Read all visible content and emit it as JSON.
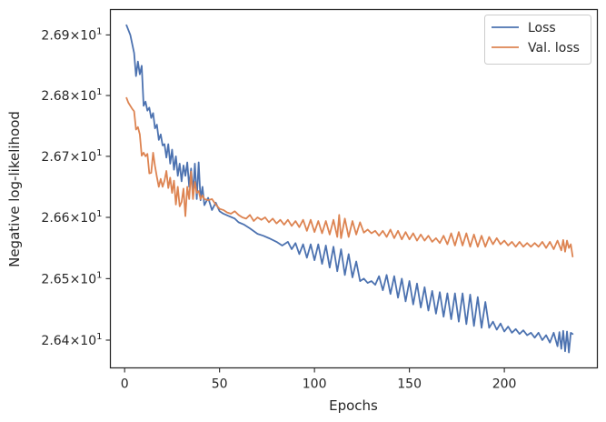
{
  "chart_data": {
    "type": "line",
    "title": "",
    "xlabel": "Epochs",
    "ylabel": "Negative log-likelihood",
    "xlim": [
      -7.5,
      249
    ],
    "ylim": [
      26.355,
      26.942
    ],
    "y_scale": "log",
    "grid": false,
    "legend_position": "top-right",
    "x_ticks": [
      0,
      50,
      100,
      150,
      200
    ],
    "x_tick_labels": [
      "0",
      "50",
      "100",
      "150",
      "200"
    ],
    "y_ticks": [
      26.4,
      26.5,
      26.6,
      26.7,
      26.8,
      26.9
    ],
    "y_tick_mantissas": [
      "2.64",
      "2.65",
      "2.66",
      "2.67",
      "2.68",
      "2.69"
    ],
    "y_tick_times": "×",
    "y_tick_base": "10",
    "y_tick_exponent": "1",
    "series": [
      {
        "name": "Loss",
        "color": "#4c72b0",
        "points": [
          [
            1,
            26.916
          ],
          [
            3,
            26.9
          ],
          [
            5,
            26.87
          ],
          [
            6,
            26.832
          ],
          [
            7,
            26.856
          ],
          [
            8,
            26.835
          ],
          [
            9,
            26.849
          ],
          [
            10,
            26.783
          ],
          [
            11,
            26.79
          ],
          [
            12,
            26.775
          ],
          [
            13,
            26.78
          ],
          [
            14,
            26.763
          ],
          [
            15,
            26.771
          ],
          [
            16,
            26.746
          ],
          [
            17,
            26.752
          ],
          [
            18,
            26.727
          ],
          [
            19,
            26.736
          ],
          [
            20,
            26.718
          ],
          [
            21,
            26.72
          ],
          [
            22,
            26.698
          ],
          [
            23,
            26.72
          ],
          [
            24,
            26.688
          ],
          [
            25,
            26.711
          ],
          [
            26,
            26.678
          ],
          [
            27,
            26.7
          ],
          [
            28,
            26.668
          ],
          [
            29,
            26.688
          ],
          [
            30,
            26.659
          ],
          [
            31,
            26.685
          ],
          [
            32,
            26.668
          ],
          [
            33,
            26.69
          ],
          [
            34,
            26.65
          ],
          [
            35,
            26.68
          ],
          [
            36,
            26.64
          ],
          [
            37,
            26.688
          ],
          [
            38,
            26.63
          ],
          [
            39,
            26.69
          ],
          [
            40,
            26.628
          ],
          [
            41,
            26.65
          ],
          [
            42,
            26.62
          ],
          [
            44,
            26.632
          ],
          [
            46,
            26.612
          ],
          [
            48,
            26.624
          ],
          [
            50,
            26.61
          ],
          [
            52,
            26.606
          ],
          [
            55,
            26.602
          ],
          [
            58,
            26.598
          ],
          [
            60,
            26.592
          ],
          [
            63,
            26.588
          ],
          [
            66,
            26.582
          ],
          [
            70,
            26.573
          ],
          [
            73,
            26.57
          ],
          [
            76,
            26.566
          ],
          [
            80,
            26.56
          ],
          [
            83,
            26.554
          ],
          [
            86,
            26.56
          ],
          [
            88,
            26.548
          ],
          [
            90,
            26.558
          ],
          [
            92,
            26.54
          ],
          [
            94,
            26.556
          ],
          [
            96,
            26.534
          ],
          [
            98,
            26.556
          ],
          [
            100,
            26.53
          ],
          [
            102,
            26.556
          ],
          [
            104,
            26.524
          ],
          [
            106,
            26.554
          ],
          [
            108,
            26.518
          ],
          [
            110,
            26.552
          ],
          [
            112,
            26.512
          ],
          [
            114,
            26.548
          ],
          [
            116,
            26.506
          ],
          [
            118,
            26.54
          ],
          [
            120,
            26.502
          ],
          [
            122,
            26.528
          ],
          [
            124,
            26.496
          ],
          [
            126,
            26.5
          ],
          [
            128,
            26.493
          ],
          [
            130,
            26.496
          ],
          [
            132,
            26.49
          ],
          [
            134,
            26.504
          ],
          [
            136,
            26.481
          ],
          [
            138,
            26.506
          ],
          [
            140,
            26.475
          ],
          [
            142,
            26.504
          ],
          [
            144,
            26.469
          ],
          [
            146,
            26.5
          ],
          [
            148,
            26.463
          ],
          [
            150,
            26.496
          ],
          [
            152,
            26.458
          ],
          [
            154,
            26.492
          ],
          [
            156,
            26.453
          ],
          [
            158,
            26.486
          ],
          [
            160,
            26.448
          ],
          [
            162,
            26.48
          ],
          [
            164,
            26.443
          ],
          [
            166,
            26.478
          ],
          [
            168,
            26.438
          ],
          [
            170,
            26.476
          ],
          [
            172,
            26.434
          ],
          [
            174,
            26.476
          ],
          [
            176,
            26.43
          ],
          [
            178,
            26.476
          ],
          [
            180,
            26.426
          ],
          [
            182,
            26.474
          ],
          [
            184,
            26.423
          ],
          [
            186,
            26.47
          ],
          [
            188,
            26.42
          ],
          [
            190,
            26.462
          ],
          [
            192,
            26.42
          ],
          [
            194,
            26.43
          ],
          [
            196,
            26.417
          ],
          [
            198,
            26.427
          ],
          [
            200,
            26.414
          ],
          [
            202,
            26.422
          ],
          [
            204,
            26.412
          ],
          [
            206,
            26.418
          ],
          [
            208,
            26.41
          ],
          [
            210,
            26.416
          ],
          [
            212,
            26.408
          ],
          [
            214,
            26.412
          ],
          [
            216,
            26.404
          ],
          [
            218,
            26.412
          ],
          [
            220,
            26.4
          ],
          [
            222,
            26.408
          ],
          [
            224,
            26.396
          ],
          [
            226,
            26.412
          ],
          [
            228,
            26.39
          ],
          [
            229,
            26.413
          ],
          [
            230,
            26.386
          ],
          [
            231,
            26.415
          ],
          [
            232,
            26.382
          ],
          [
            233,
            26.414
          ],
          [
            234,
            26.38
          ],
          [
            235,
            26.412
          ],
          [
            236,
            26.41
          ]
        ]
      },
      {
        "name": "Val. loss",
        "color": "#dd8452",
        "points": [
          [
            1,
            26.796
          ],
          [
            2,
            26.788
          ],
          [
            4,
            26.778
          ],
          [
            5,
            26.774
          ],
          [
            6,
            26.744
          ],
          [
            7,
            26.748
          ],
          [
            8,
            26.736
          ],
          [
            9,
            26.701
          ],
          [
            10,
            26.706
          ],
          [
            11,
            26.7
          ],
          [
            12,
            26.704
          ],
          [
            13,
            26.672
          ],
          [
            14,
            26.673
          ],
          [
            15,
            26.706
          ],
          [
            16,
            26.684
          ],
          [
            17,
            26.666
          ],
          [
            18,
            26.65
          ],
          [
            19,
            26.663
          ],
          [
            20,
            26.65
          ],
          [
            21,
            26.66
          ],
          [
            22,
            26.676
          ],
          [
            23,
            26.648
          ],
          [
            24,
            26.665
          ],
          [
            25,
            26.64
          ],
          [
            26,
            26.66
          ],
          [
            27,
            26.621
          ],
          [
            28,
            26.65
          ],
          [
            29,
            26.618
          ],
          [
            30,
            26.625
          ],
          [
            31,
            26.647
          ],
          [
            32,
            26.602
          ],
          [
            33,
            26.65
          ],
          [
            34,
            26.63
          ],
          [
            35,
            26.675
          ],
          [
            36,
            26.63
          ],
          [
            37,
            26.658
          ],
          [
            38,
            26.64
          ],
          [
            39,
            26.643
          ],
          [
            40,
            26.63
          ],
          [
            41,
            26.636
          ],
          [
            42,
            26.63
          ],
          [
            44,
            26.628
          ],
          [
            46,
            26.63
          ],
          [
            48,
            26.621
          ],
          [
            50,
            26.614
          ],
          [
            52,
            26.612
          ],
          [
            54,
            26.608
          ],
          [
            56,
            26.606
          ],
          [
            58,
            26.61
          ],
          [
            60,
            26.604
          ],
          [
            62,
            26.6
          ],
          [
            64,
            26.598
          ],
          [
            66,
            26.604
          ],
          [
            68,
            26.594
          ],
          [
            70,
            26.6
          ],
          [
            72,
            26.596
          ],
          [
            74,
            26.6
          ],
          [
            76,
            26.592
          ],
          [
            78,
            26.598
          ],
          [
            80,
            26.59
          ],
          [
            82,
            26.596
          ],
          [
            84,
            26.588
          ],
          [
            86,
            26.596
          ],
          [
            88,
            26.586
          ],
          [
            90,
            26.594
          ],
          [
            92,
            26.584
          ],
          [
            94,
            26.596
          ],
          [
            96,
            26.578
          ],
          [
            98,
            26.596
          ],
          [
            100,
            26.576
          ],
          [
            102,
            26.594
          ],
          [
            104,
            26.574
          ],
          [
            106,
            26.594
          ],
          [
            108,
            26.572
          ],
          [
            110,
            26.596
          ],
          [
            112,
            26.568
          ],
          [
            113,
            26.604
          ],
          [
            114,
            26.566
          ],
          [
            116,
            26.598
          ],
          [
            118,
            26.568
          ],
          [
            120,
            26.594
          ],
          [
            122,
            26.572
          ],
          [
            124,
            26.592
          ],
          [
            126,
            26.575
          ],
          [
            128,
            26.58
          ],
          [
            130,
            26.574
          ],
          [
            132,
            26.578
          ],
          [
            134,
            26.57
          ],
          [
            136,
            26.578
          ],
          [
            138,
            26.568
          ],
          [
            140,
            26.58
          ],
          [
            142,
            26.566
          ],
          [
            144,
            26.578
          ],
          [
            146,
            26.564
          ],
          [
            148,
            26.576
          ],
          [
            150,
            26.564
          ],
          [
            152,
            26.574
          ],
          [
            154,
            26.562
          ],
          [
            156,
            26.572
          ],
          [
            158,
            26.562
          ],
          [
            160,
            26.57
          ],
          [
            162,
            26.56
          ],
          [
            164,
            26.566
          ],
          [
            166,
            26.558
          ],
          [
            168,
            26.57
          ],
          [
            170,
            26.556
          ],
          [
            172,
            26.574
          ],
          [
            174,
            26.554
          ],
          [
            176,
            26.576
          ],
          [
            178,
            26.554
          ],
          [
            180,
            26.574
          ],
          [
            182,
            26.552
          ],
          [
            184,
            26.572
          ],
          [
            186,
            26.552
          ],
          [
            188,
            26.57
          ],
          [
            190,
            26.552
          ],
          [
            192,
            26.568
          ],
          [
            194,
            26.556
          ],
          [
            196,
            26.566
          ],
          [
            198,
            26.556
          ],
          [
            200,
            26.562
          ],
          [
            202,
            26.554
          ],
          [
            204,
            26.56
          ],
          [
            206,
            26.552
          ],
          [
            208,
            26.56
          ],
          [
            210,
            26.552
          ],
          [
            212,
            26.558
          ],
          [
            214,
            26.552
          ],
          [
            216,
            26.558
          ],
          [
            218,
            26.552
          ],
          [
            220,
            26.56
          ],
          [
            222,
            26.55
          ],
          [
            224,
            26.56
          ],
          [
            226,
            26.548
          ],
          [
            228,
            26.562
          ],
          [
            230,
            26.546
          ],
          [
            231,
            26.563
          ],
          [
            232,
            26.544
          ],
          [
            233,
            26.562
          ],
          [
            234,
            26.55
          ],
          [
            235,
            26.556
          ],
          [
            236,
            26.536
          ]
        ]
      }
    ]
  }
}
